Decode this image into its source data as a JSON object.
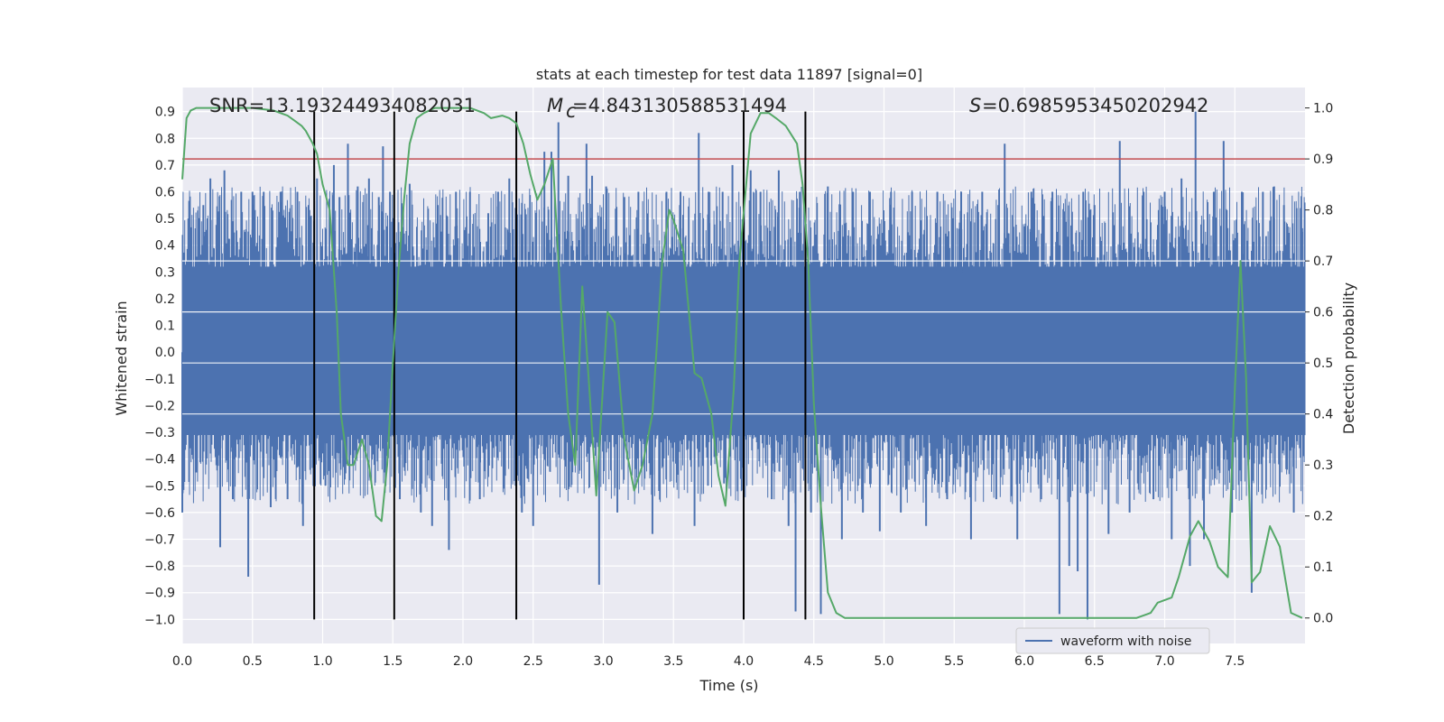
{
  "chart_data": {
    "type": "line",
    "title": "stats at each timestep for test data 11897 [signal=0]",
    "xlabel": "Time (s)",
    "ylabel_left": "Whitened strain",
    "ylabel_right": "Detection probability",
    "xlim": [
      0.0,
      8.0
    ],
    "ylim_left": [
      -1.09,
      0.99
    ],
    "ylim_right": [
      -0.05,
      1.04
    ],
    "xticks": [
      "0.0",
      "0.5",
      "1.0",
      "1.5",
      "2.0",
      "2.5",
      "3.0",
      "3.5",
      "4.0",
      "4.5",
      "5.0",
      "5.5",
      "6.0",
      "6.5",
      "7.0",
      "7.5"
    ],
    "yticks_left": [
      "0.9",
      "0.8",
      "0.7",
      "0.6",
      "0.5",
      "0.4",
      "0.3",
      "0.2",
      "0.1",
      "0.0",
      "−0.1",
      "−0.2",
      "−0.3",
      "−0.4",
      "−0.5",
      "−0.6",
      "−0.7",
      "−0.8",
      "−0.9",
      "−1.0"
    ],
    "yticks_right": [
      "1.0",
      "0.9",
      "0.8",
      "0.7",
      "0.6",
      "0.5",
      "0.4",
      "0.3",
      "0.2",
      "0.1",
      "0.0"
    ],
    "annotations": {
      "snr": "SNR=13.193244934082031",
      "mc": "=4.843130588531494",
      "s": "=0.6985953450202942"
    },
    "threshold": 0.9,
    "vertical_lines": [
      0.94,
      1.51,
      2.38,
      4.0,
      4.44
    ],
    "series": [
      {
        "name": "waveform with noise",
        "color": "#4c72b0",
        "axis": "left",
        "core_band": [
          -0.31,
          0.32
        ],
        "spikes": [
          [
            0.0,
            -0.6
          ],
          [
            0.05,
            0.43
          ],
          [
            0.1,
            -0.45
          ],
          [
            0.15,
            0.55
          ],
          [
            0.2,
            0.65
          ],
          [
            0.27,
            -0.73
          ],
          [
            0.3,
            0.68
          ],
          [
            0.36,
            -0.55
          ],
          [
            0.42,
            0.6
          ],
          [
            0.47,
            -0.84
          ],
          [
            0.5,
            0.6
          ],
          [
            0.58,
            0.6
          ],
          [
            0.63,
            -0.58
          ],
          [
            0.7,
            0.6
          ],
          [
            0.75,
            -0.55
          ],
          [
            0.82,
            0.6
          ],
          [
            0.86,
            -0.65
          ],
          [
            0.9,
            0.55
          ],
          [
            0.96,
            0.65
          ],
          [
            1.02,
            -0.5
          ],
          [
            1.08,
            0.7
          ],
          [
            1.12,
            0.58
          ],
          [
            1.18,
            0.78
          ],
          [
            1.25,
            0.62
          ],
          [
            1.33,
            0.65
          ],
          [
            1.4,
            0.58
          ],
          [
            1.43,
            0.77
          ],
          [
            1.48,
            0.6
          ],
          [
            1.55,
            -0.55
          ],
          [
            1.62,
            0.63
          ],
          [
            1.7,
            -0.6
          ],
          [
            1.78,
            -0.65
          ],
          [
            1.82,
            0.55
          ],
          [
            1.9,
            -0.74
          ],
          [
            1.95,
            0.6
          ],
          [
            2.05,
            0.6
          ],
          [
            2.12,
            -0.55
          ],
          [
            2.18,
            0.52
          ],
          [
            2.25,
            0.6
          ],
          [
            2.33,
            0.65
          ],
          [
            2.42,
            -0.6
          ],
          [
            2.5,
            -0.65
          ],
          [
            2.58,
            0.75
          ],
          [
            2.63,
            0.75
          ],
          [
            2.68,
            0.86
          ],
          [
            2.75,
            0.66
          ],
          [
            2.82,
            0.5
          ],
          [
            2.88,
            0.78
          ],
          [
            2.92,
            0.66
          ],
          [
            2.97,
            -0.87
          ],
          [
            3.02,
            0.62
          ],
          [
            3.1,
            -0.6
          ],
          [
            3.15,
            0.58
          ],
          [
            3.25,
            0.6
          ],
          [
            3.35,
            -0.68
          ],
          [
            3.45,
            0.6
          ],
          [
            3.55,
            0.6
          ],
          [
            3.65,
            -0.65
          ],
          [
            3.68,
            0.82
          ],
          [
            3.75,
            0.6
          ],
          [
            3.85,
            0.6
          ],
          [
            3.92,
            0.7
          ],
          [
            4.0,
            -0.62
          ],
          [
            4.05,
            0.68
          ],
          [
            4.12,
            0.6
          ],
          [
            4.2,
            -0.55
          ],
          [
            4.25,
            0.68
          ],
          [
            4.32,
            -0.65
          ],
          [
            4.37,
            -0.97
          ],
          [
            4.4,
            0.6
          ],
          [
            4.48,
            -0.6
          ],
          [
            4.55,
            -0.98
          ],
          [
            4.6,
            0.62
          ],
          [
            4.7,
            -0.7
          ],
          [
            4.78,
            0.6
          ],
          [
            4.85,
            -0.6
          ],
          [
            4.9,
            0.6
          ],
          [
            4.97,
            -0.67
          ],
          [
            5.05,
            0.6
          ],
          [
            5.12,
            -0.6
          ],
          [
            5.2,
            0.6
          ],
          [
            5.3,
            -0.65
          ],
          [
            5.38,
            0.6
          ],
          [
            5.45,
            -0.55
          ],
          [
            5.55,
            0.6
          ],
          [
            5.62,
            -0.7
          ],
          [
            5.7,
            0.6
          ],
          [
            5.8,
            -0.55
          ],
          [
            5.86,
            0.78
          ],
          [
            5.95,
            -0.7
          ],
          [
            6.05,
            0.6
          ],
          [
            6.12,
            -0.55
          ],
          [
            6.2,
            0.6
          ],
          [
            6.25,
            -0.98
          ],
          [
            6.32,
            -0.8
          ],
          [
            6.38,
            -0.82
          ],
          [
            6.42,
            0.6
          ],
          [
            6.45,
            -1.0
          ],
          [
            6.5,
            0.55
          ],
          [
            6.6,
            -0.68
          ],
          [
            6.68,
            0.79
          ],
          [
            6.75,
            -0.6
          ],
          [
            6.85,
            0.6
          ],
          [
            6.92,
            -0.55
          ],
          [
            7.0,
            0.6
          ],
          [
            7.05,
            -0.7
          ],
          [
            7.12,
            0.65
          ],
          [
            7.18,
            -0.8
          ],
          [
            7.22,
            0.9
          ],
          [
            7.28,
            -0.7
          ],
          [
            7.35,
            0.6
          ],
          [
            7.42,
            0.79
          ],
          [
            7.48,
            -0.6
          ],
          [
            7.55,
            0.6
          ],
          [
            7.62,
            -0.9
          ],
          [
            7.7,
            0.6
          ],
          [
            7.78,
            0.62
          ],
          [
            7.85,
            0.55
          ],
          [
            7.92,
            -0.6
          ],
          [
            7.98,
            0.45
          ]
        ]
      },
      {
        "name": "detection probability",
        "color": "#55a868",
        "axis": "right",
        "x": [
          0.0,
          0.03,
          0.06,
          0.1,
          0.15,
          0.3,
          0.5,
          0.65,
          0.75,
          0.8,
          0.85,
          0.88,
          0.93,
          0.96,
          1.0,
          1.05,
          1.1,
          1.13,
          1.18,
          1.22,
          1.28,
          1.33,
          1.38,
          1.42,
          1.46,
          1.5,
          1.54,
          1.58,
          1.62,
          1.67,
          1.72,
          1.8,
          2.05,
          2.15,
          2.2,
          2.28,
          2.33,
          2.38,
          2.43,
          2.48,
          2.53,
          2.58,
          2.64,
          2.7,
          2.75,
          2.8,
          2.85,
          2.9,
          2.95,
          3.03,
          3.08,
          3.15,
          3.22,
          3.28,
          3.35,
          3.42,
          3.47,
          3.5,
          3.57,
          3.65,
          3.7,
          3.77,
          3.82,
          3.87,
          3.93,
          3.97,
          4.05,
          4.12,
          4.18,
          4.23,
          4.3,
          4.38,
          4.42,
          4.46,
          4.5,
          4.55,
          4.6,
          4.66,
          4.72,
          4.8,
          5.0,
          5.3,
          5.5,
          5.8,
          6.1,
          6.4,
          6.6,
          6.8,
          6.9,
          6.95,
          7.05,
          7.1,
          7.18,
          7.24,
          7.32,
          7.38,
          7.45,
          7.5,
          7.54,
          7.58,
          7.62,
          7.68,
          7.75,
          7.82,
          7.9,
          7.98
        ],
        "y": [
          0.86,
          0.98,
          0.995,
          1.0,
          1.0,
          1.0,
          1.0,
          0.995,
          0.985,
          0.975,
          0.965,
          0.955,
          0.93,
          0.91,
          0.85,
          0.8,
          0.6,
          0.4,
          0.3,
          0.3,
          0.35,
          0.3,
          0.2,
          0.19,
          0.3,
          0.5,
          0.68,
          0.82,
          0.93,
          0.98,
          0.99,
          1.0,
          1.0,
          0.99,
          0.98,
          0.985,
          0.98,
          0.97,
          0.93,
          0.87,
          0.82,
          0.85,
          0.9,
          0.6,
          0.4,
          0.3,
          0.65,
          0.45,
          0.24,
          0.6,
          0.58,
          0.35,
          0.25,
          0.3,
          0.4,
          0.7,
          0.8,
          0.78,
          0.72,
          0.48,
          0.47,
          0.4,
          0.28,
          0.22,
          0.45,
          0.7,
          0.95,
          0.99,
          0.99,
          0.98,
          0.965,
          0.93,
          0.85,
          0.7,
          0.42,
          0.22,
          0.05,
          0.01,
          0.0,
          0.0,
          0.0,
          0.0,
          0.0,
          0.0,
          0.0,
          0.0,
          0.0,
          0.0,
          0.01,
          0.03,
          0.04,
          0.08,
          0.16,
          0.19,
          0.15,
          0.1,
          0.08,
          0.45,
          0.7,
          0.47,
          0.07,
          0.09,
          0.18,
          0.14,
          0.01,
          0.0
        ]
      }
    ]
  }
}
